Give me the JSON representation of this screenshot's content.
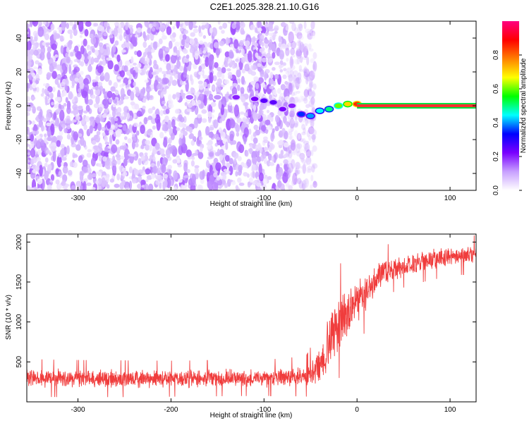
{
  "title": "C2E1.2025.328.21.10.G16",
  "chart_data": [
    {
      "type": "heatmap",
      "name": "spectrogram",
      "xlabel": "Height of straight line (km)",
      "ylabel": "Frequency (Hz)",
      "xlim": [
        -355,
        128
      ],
      "ylim": [
        -50,
        50
      ],
      "xticks": [
        -300,
        -200,
        -100,
        0,
        100
      ],
      "yticks": [
        -40,
        -20,
        0,
        20,
        40
      ],
      "grid": false,
      "colorbar": {
        "label": "Normalized spectral amplitude",
        "range": [
          0,
          1
        ],
        "ticks": [
          "0.0",
          "0.2",
          "0.4",
          "0.6",
          "0.8"
        ],
        "colors": [
          "#ffffff",
          "#c8a0ff",
          "#7a00ff",
          "#0000ff",
          "#00ffff",
          "#00ff00",
          "#ffff00",
          "#ff8000",
          "#ff0000",
          "#ff0080"
        ]
      },
      "features": {
        "noise_region_km": [
          -355,
          -55
        ],
        "trace_points": [
          {
            "x": -180,
            "y": 5,
            "v": 0.15
          },
          {
            "x": -150,
            "y": 5,
            "v": 0.12
          },
          {
            "x": -130,
            "y": 5,
            "v": 0.2
          },
          {
            "x": -110,
            "y": 4,
            "v": 0.22
          },
          {
            "x": -100,
            "y": 3,
            "v": 0.25
          },
          {
            "x": -90,
            "y": 2,
            "v": 0.25
          },
          {
            "x": -80,
            "y": -2,
            "v": 0.22
          },
          {
            "x": -70,
            "y": 0,
            "v": 0.2
          },
          {
            "x": -60,
            "y": -5,
            "v": 0.35
          },
          {
            "x": -50,
            "y": -6,
            "v": 0.4
          },
          {
            "x": -40,
            "y": -3,
            "v": 0.45
          },
          {
            "x": -30,
            "y": -2,
            "v": 0.5
          },
          {
            "x": -20,
            "y": 0,
            "v": 0.6
          },
          {
            "x": -10,
            "y": 1,
            "v": 0.7
          },
          {
            "x": 0,
            "y": 1,
            "v": 0.85
          }
        ],
        "constant_tone": {
          "x_start": 0,
          "x_end": 128,
          "y": 0,
          "v": 1.0
        }
      }
    },
    {
      "type": "line",
      "name": "snr",
      "xlabel": "Height of straight line (km)",
      "ylabel": "SNR (10 * v/v)",
      "xlim": [
        -355,
        128
      ],
      "ylim": [
        0,
        2100
      ],
      "xticks": [
        -300,
        -200,
        -100,
        0,
        100
      ],
      "yticks": [
        500,
        1000,
        1500,
        2000
      ],
      "series": [
        {
          "name": "SNR",
          "color": "#f03c3c",
          "profile": [
            {
              "x": -355,
              "y": 300,
              "noise": 130
            },
            {
              "x": -300,
              "y": 290,
              "noise": 130
            },
            {
              "x": -200,
              "y": 290,
              "noise": 125
            },
            {
              "x": -100,
              "y": 300,
              "noise": 125
            },
            {
              "x": -55,
              "y": 320,
              "noise": 140
            },
            {
              "x": -40,
              "y": 450,
              "noise": 250
            },
            {
              "x": -30,
              "y": 750,
              "noise": 400
            },
            {
              "x": -20,
              "y": 1000,
              "noise": 400
            },
            {
              "x": -10,
              "y": 1150,
              "noise": 350
            },
            {
              "x": 0,
              "y": 1250,
              "noise": 300
            },
            {
              "x": 10,
              "y": 1350,
              "noise": 250
            },
            {
              "x": 20,
              "y": 1550,
              "noise": 220
            },
            {
              "x": 30,
              "y": 1650,
              "noise": 180
            },
            {
              "x": 50,
              "y": 1700,
              "noise": 150
            },
            {
              "x": 80,
              "y": 1780,
              "noise": 140
            },
            {
              "x": 100,
              "y": 1820,
              "noise": 140
            },
            {
              "x": 128,
              "y": 1850,
              "noise": 130
            }
          ]
        }
      ]
    }
  ]
}
